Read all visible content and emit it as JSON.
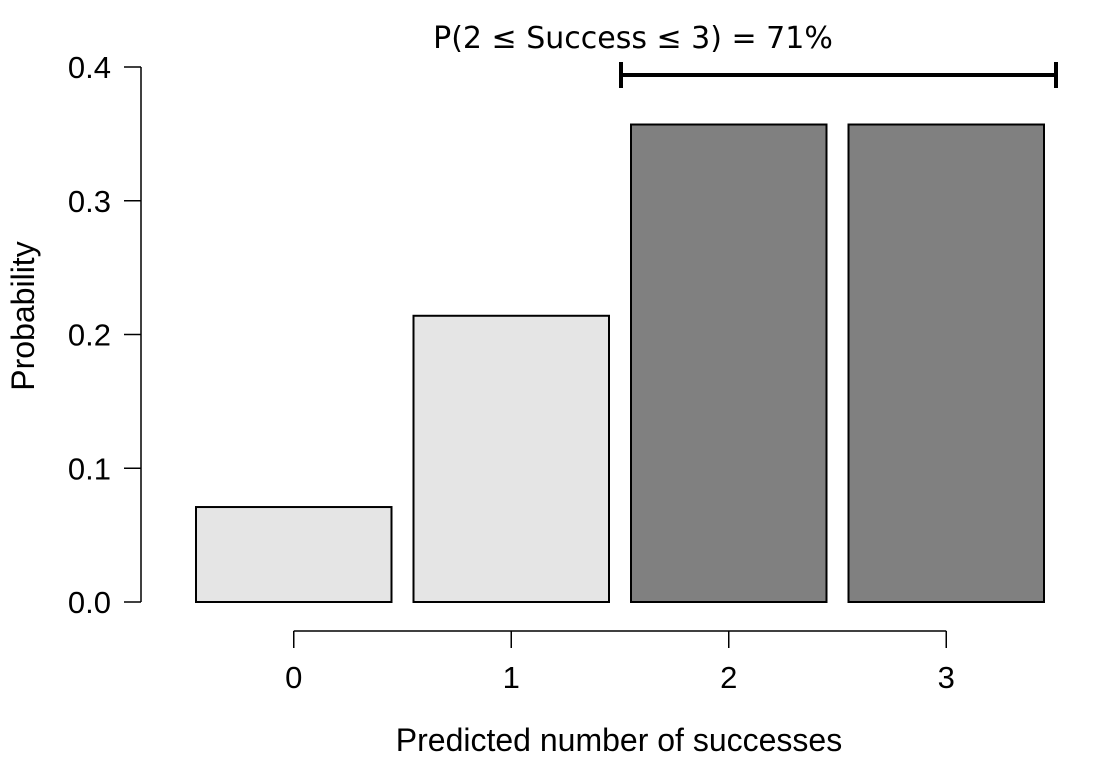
{
  "chart_data": {
    "type": "bar",
    "categories": [
      "0",
      "1",
      "2",
      "3"
    ],
    "values": [
      0.071,
      0.214,
      0.357,
      0.357
    ],
    "highlighted": [
      false,
      false,
      true,
      true
    ],
    "colors": {
      "default": "#e5e5e5",
      "highlight": "#808080",
      "stroke": "#000000"
    },
    "xlabel": "Predicted number of successes",
    "ylabel": "Probability",
    "ylim": [
      0,
      0.4
    ],
    "yticks": [
      "0.0",
      "0.1",
      "0.2",
      "0.3",
      "0.4"
    ],
    "annotation": {
      "text": "P(2 ≤ Success ≤ 3) = 71%",
      "range": [
        2,
        3
      ]
    },
    "grid": false,
    "legend": "none"
  }
}
